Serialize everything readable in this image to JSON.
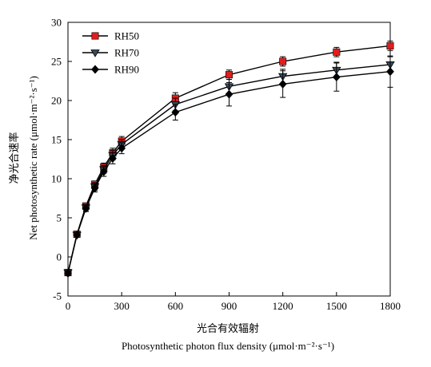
{
  "chart_data": {
    "type": "line",
    "title": "",
    "xlabel_cn": "光合有效辐射",
    "xlabel": "Photosynthetic photon flux density (μmol·m⁻²·s⁻¹)",
    "ylabel_cn": "净光合速率",
    "ylabel": "Net photosynthetic rate (μmol·m⁻²·s⁻¹)",
    "xlim": [
      0,
      1800
    ],
    "ylim": [
      -5,
      30
    ],
    "xticks": [
      0,
      300,
      600,
      900,
      1200,
      1500,
      1800
    ],
    "yticks": [
      -5,
      0,
      5,
      10,
      15,
      20,
      25,
      30
    ],
    "grid": false,
    "legend_position": "top-left",
    "x": [
      0,
      50,
      100,
      150,
      200,
      250,
      300,
      600,
      900,
      1200,
      1500,
      1800
    ],
    "series": [
      {
        "name": "RH50",
        "marker": "square",
        "marker_color": "#e11d1d",
        "values": [
          -2.0,
          2.9,
          6.5,
          9.3,
          11.5,
          13.3,
          14.8,
          20.3,
          23.3,
          25.0,
          26.2,
          27.0
        ],
        "errors": [
          0.3,
          0.3,
          0.4,
          0.4,
          0.5,
          0.6,
          0.6,
          0.7,
          0.6,
          0.6,
          0.6,
          0.6
        ]
      },
      {
        "name": "RH70",
        "marker": "triangle-down",
        "marker_color": "#3a4a5a",
        "values": [
          -2.0,
          2.8,
          6.3,
          9.0,
          11.2,
          13.0,
          14.4,
          19.5,
          21.8,
          23.1,
          23.9,
          24.6
        ],
        "errors": [
          0.3,
          0.3,
          0.4,
          0.5,
          0.5,
          0.6,
          0.6,
          0.8,
          0.9,
          0.9,
          1.0,
          1.0
        ]
      },
      {
        "name": "RH90",
        "marker": "diamond",
        "marker_color": "#000000",
        "values": [
          -2.1,
          2.8,
          6.2,
          8.8,
          10.9,
          12.6,
          13.9,
          18.5,
          20.8,
          22.1,
          23.0,
          23.7
        ],
        "errors": [
          0.3,
          0.3,
          0.4,
          0.5,
          0.6,
          0.7,
          0.7,
          1.0,
          1.5,
          1.7,
          1.8,
          2.0
        ]
      }
    ]
  }
}
